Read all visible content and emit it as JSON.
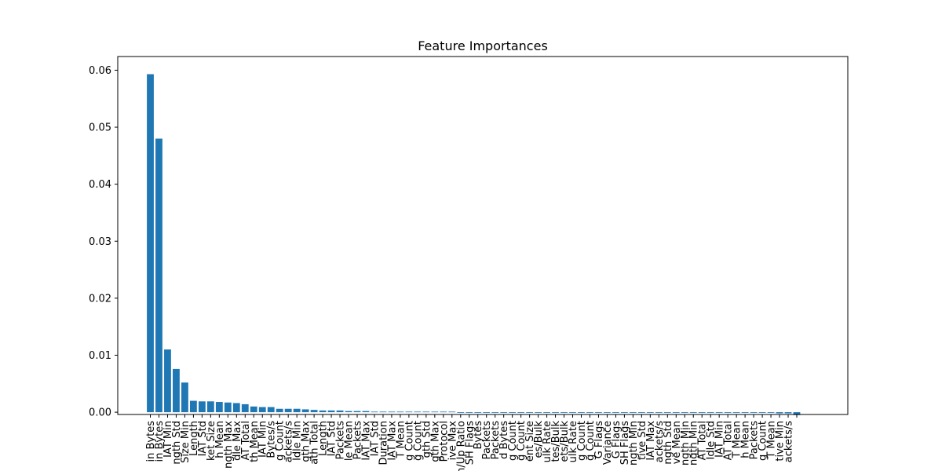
{
  "chart_data": {
    "type": "bar",
    "title": "Feature Importances",
    "xlabel": "",
    "ylabel": "",
    "ylim": [
      -0.0004,
      0.0624
    ],
    "yticks": [
      0.0,
      0.01,
      0.02,
      0.03,
      0.04,
      0.05,
      0.06
    ],
    "ytick_labels": [
      "0.00",
      "0.01",
      "0.02",
      "0.03",
      "0.04",
      "0.05",
      "0.06"
    ],
    "grid": false,
    "bar_color": "#1f77b4",
    "categories": [
      "Init_Win_bytes_forward",
      "Init_Win_bytes_backward",
      "Bwd IAT Min",
      "Packet Length Std",
      "Min Packet Size",
      "Max Packet Length",
      "Fwd IAT Std",
      "Average Packet Size",
      "Packet Length Mean",
      "Fwd Packet Length Max",
      "Idle Max",
      "Fwd IAT Total",
      "Bwd Packet Length Mean",
      "Flow IAT Min",
      "Total Length of Fwd Packets",
      "Flow Bytes/s",
      "Subflow Fwd Packets",
      "Fwd Packets/s",
      "Idle Min",
      "Bwd Packet Length Max",
      "Fwd Packet Length Total",
      "Bwd Packet Length",
      "Bwd IAT Std",
      "Total Fwd Packets",
      "Idle Mean",
      "Subflow Bwd Packets",
      "Fwd IAT Max",
      "Bwd IAT Std",
      "Flow Duration",
      "Bwd IAT Max",
      "Flow IAT Mean",
      "PSH Flag Count",
      "URG Flag Count",
      "Packet Length Std",
      "Packet Length Max",
      "Protocol",
      "Active Max",
      "Down/Up Ratio",
      "Fwd PSH Flags",
      "Subflow Fwd Bytes",
      "Total Bwd Packets",
      "Subflow Bwd Packets",
      "Subflow Bwd Bytes",
      "FIN Flag Count",
      "ACK Flag Count",
      "Avg Fwd Segment Size",
      "Fwd Avg Bytes/Bulk",
      "Fwd Avg Bulk Rate",
      "Bwd Avg Bytes/Bulk",
      "Bwd Avg Packets/Bulk",
      "Bwd Avg Bulk Rate",
      "RST Flag Count",
      "SYN Flag Count",
      "Fwd URG Flags",
      "Packet Length Variance",
      "Bwd URG Flags",
      "Bwd PSH Flags",
      "Min Packet Length",
      "Active Std",
      "Bwd IAT Max",
      "Bwd Packets/s",
      "Fwd Packet Length Std",
      "Active Mean",
      "Fwd Packet Length Min",
      "Bwd Packet Length Min",
      "Flow IAT Total",
      "Idle Std",
      "Fwd IAT Min",
      "Bwd IAT Total",
      "Fwd IAT Mean",
      "Fwd Packet Length Mean",
      "Total Fwd Packets",
      "CWE Flag Count",
      "Bwd IAT Mean",
      "Active Min",
      "Flow Packets/s"
    ],
    "visible_labels": [
      "in Bytes",
      "in Bytes",
      "IAT Min",
      "ngth Std",
      "Size Min",
      "Length",
      "IAT Std",
      "ket Size",
      "h Mean",
      "ngth Max",
      "dle Max",
      "AT Total",
      "th Mean",
      "IAT Min",
      "Bytes/s",
      "g Count",
      "ackets/s",
      "Idle Min",
      "gth Max",
      "ath Total",
      "Length",
      "IAT Std",
      "Packets",
      "le Mean",
      "Packets",
      "IAT Max",
      "IAT Std",
      "Duration",
      "IAT Max",
      "T Mean",
      "g Count",
      "g Count",
      "gth Std",
      "gth Max",
      "Protocol",
      "ive Max",
      "n/Up Ratio",
      "SH Flags",
      "Bytes",
      "Packets",
      "Packets",
      "d Bytes",
      "g Count",
      "g Count",
      "ent Size",
      "es/Bulk",
      "ulk Rate",
      "tes/Bulk",
      "ets/Bulk",
      "ulk Rate",
      "g Count",
      "g Count",
      "G Flags",
      "Variance",
      "G Flags",
      "SH Flags",
      "ngth Min",
      "tive Std",
      "IAT Max",
      "ackets/s",
      "ngth Std",
      "ve Mean",
      "ngth Min",
      "ngth Min",
      "AT Total",
      "Idle Std",
      "IAT Min",
      "AT Total",
      "T Mean",
      "h Mean",
      "Packets",
      "g Count",
      "T Mean",
      "tive Min",
      "ackets/s",
      ""
    ],
    "values": [
      0.0593,
      0.048,
      0.011,
      0.0076,
      0.0052,
      0.002,
      0.0019,
      0.0019,
      0.0018,
      0.0017,
      0.0016,
      0.0014,
      0.001,
      0.0009,
      0.0009,
      0.0006,
      0.0006,
      0.0006,
      0.0005,
      0.0004,
      0.0003,
      0.0003,
      0.0003,
      0.0002,
      0.0002,
      0.0002,
      0.0001,
      0.0001,
      0.0001,
      0.0001,
      0.0001,
      0.0001,
      0.0001,
      0.0001,
      0.0001,
      0.0001,
      0.0,
      0.0,
      0.0,
      0.0,
      0.0,
      0.0,
      0.0,
      0.0,
      0.0,
      0.0,
      0.0,
      0.0,
      0.0,
      0.0,
      0.0,
      0.0,
      0.0,
      0.0,
      0.0,
      0.0,
      0.0,
      0.0,
      0.0,
      0.0,
      0.0,
      0.0,
      0.0,
      0.0,
      0.0,
      0.0,
      0.0,
      0.0,
      0.0,
      -0.0001,
      -0.0001,
      -0.0001,
      -0.0001,
      -0.0002,
      -0.0002,
      -0.0005
    ]
  }
}
